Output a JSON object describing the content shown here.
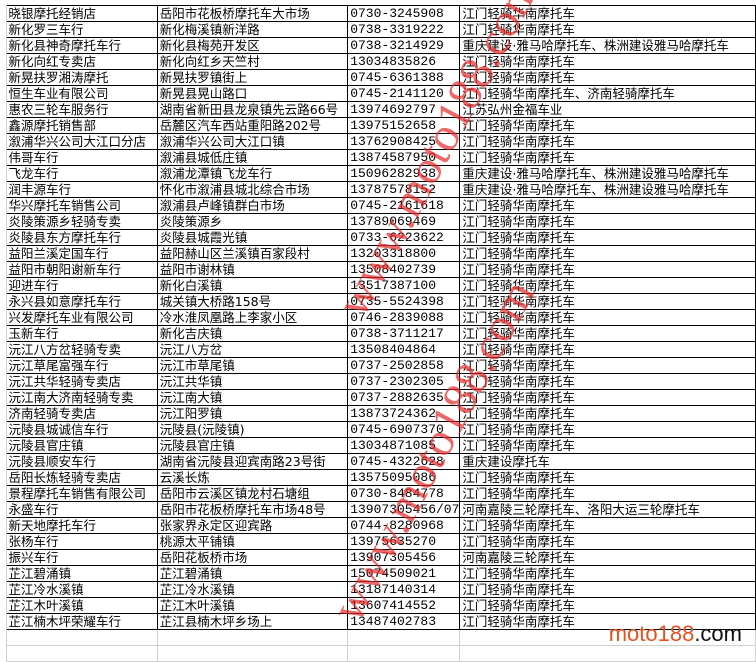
{
  "rows": [
    [
      "晓银摩托经销店",
      "岳阳市花板桥摩托车大市场",
      "0730-3245908",
      "江门轻骑华南摩托车"
    ],
    [
      "新化罗三车行",
      "新化梅溪镇新洋路",
      "0738-3319222",
      "江门轻骑华南摩托车"
    ],
    [
      "新化县神奇摩托车行",
      "新化县梅苑开发区",
      "0738-3214929",
      "重庆建设·雅马哈摩托车、株洲建设雅马哈摩托车"
    ],
    [
      "新化向红专卖店",
      "新化向红乡天竺村",
      "13034835826",
      "江门轻骑华南摩托车"
    ],
    [
      "新晃扶罗湘涛摩托",
      "新晃扶罗镇街上",
      "0745-6361388",
      "江门轻骑华南摩托车"
    ],
    [
      "恒生车业有限公司",
      "新晃县晃山路口",
      "0745-2141120",
      "江门轻骑华南摩托车、济南轻骑摩托车"
    ],
    [
      "惠农三轮车服务行",
      "湖南省新田县龙泉镇先云路66号",
      "13974692797",
      "江苏弘州金福车业"
    ],
    [
      "鑫源摩托销售部",
      "岳麓区汽车西站重阳路202号",
      "13975152658",
      "江门轻骑华南摩托车"
    ],
    [
      "溆浦华兴公司大江口分店",
      "溆浦华兴公司大江口镇",
      "13762908425",
      "江门轻骑华南摩托车"
    ],
    [
      "伟哥车行",
      "溆浦县城低庄镇",
      "13874587950",
      "江门轻骑华南摩托车"
    ],
    [
      "飞龙车行",
      "溆浦龙潭镇飞龙车行",
      "15096282938",
      "重庆建设·雅马哈摩托车、株洲建设雅马哈摩托车"
    ],
    [
      "润丰源车行",
      "怀化市溆浦县城北综合市场",
      "13787578152",
      "重庆建设·雅马哈摩托车、株洲建设雅马哈摩托车"
    ],
    [
      "华兴摩托车销售公司",
      "溆浦县卢峰镇群白市场",
      "0745-2161618",
      "江门轻骑华南摩托车"
    ],
    [
      "炎陵策源乡轻骑专卖",
      "炎陵策源乡",
      "13789069469",
      "江门轻骑华南摩托车"
    ],
    [
      "炎陵县东方摩托车行",
      "炎陵县城霞光镇",
      "0733-6223622",
      "江门轻骑华南摩托车"
    ],
    [
      "益阳兰溪定国车行",
      "益阳赫山区兰溪镇百家段村",
      "13203318800",
      "江门轻骑华南摩托车"
    ],
    [
      "益阳市朝阳谢新车行",
      "益阳市谢林镇",
      "13508402739",
      "江门轻骑华南摩托车"
    ],
    [
      "迎进车行",
      "新化白溪镇",
      "13517387100",
      "江门轻骑华南摩托车"
    ],
    [
      "永兴县如意摩托车行",
      "城关镇大桥路158号",
      "0735-5524398",
      "江门轻骑华南摩托车"
    ],
    [
      "兴发摩托车业有限公司",
      "冷水淮凤凰路上李家小区",
      "0746-2839088",
      "江门轻骑华南摩托车"
    ],
    [
      "玉新车行",
      "新化吉庆镇",
      "0738-3711217",
      "江门轻骑华南摩托车"
    ],
    [
      "沅江八方岔轻骑专卖",
      "沅江八方岔",
      "13508404864",
      "江门轻骑华南摩托车"
    ],
    [
      "沅江草尾富强车行",
      "沅江市草尾镇",
      "0737-2502858",
      "江门轻骑华南摩托车"
    ],
    [
      "沅江共华轻骑专卖店",
      "沅江共华镇",
      "0737-2302305",
      "江门轻骑华南摩托车"
    ],
    [
      "沅江南大济南轻骑专卖",
      "沅江南大镇",
      "0737-2882635",
      "江门轻骑华南摩托车"
    ],
    [
      "济南轻骑专卖店",
      "沅江阳罗镇",
      "13873724362",
      "江门轻骑华南摩托车"
    ],
    [
      "沅陵县城诚信车行",
      "沅陵县(沅陵镇)",
      "0745-6907370",
      "江门轻骑华南摩托车"
    ],
    [
      "沅陵县官庄镇",
      "沅陵县官庄镇",
      "13034871085",
      "江门轻骑华南摩托车"
    ],
    [
      "沅陵县顺安车行",
      "湖南省沅陵县迎宾南路23号街",
      "0745-4322628",
      "重庆建设摩托车"
    ],
    [
      "岳阳长炼轻骑专卖店",
      "云溪长炼",
      "13575095086",
      "江门轻骑华南摩托车"
    ],
    [
      "景程摩托车销售有限公司",
      "岳阳市云溪区镇龙村石塘组",
      "0730-8484778",
      "江门轻骑华南摩托车"
    ],
    [
      "永盛车行",
      "岳阳市花板桥摩托车市场48号",
      "13907305456/07",
      "河南嘉陵三轮摩托车、洛阳大运三轮摩托车"
    ],
    [
      "新天地摩托车行",
      "张家界永定区迎宾路",
      "0744-8280968",
      "江门轻骑华南摩托车"
    ],
    [
      "张杨车行",
      "桃源太平铺镇",
      "13975635270",
      "江门轻骑华南摩托车"
    ],
    [
      "振兴车行",
      "岳阳花板桥市场",
      "13907305456",
      "河南嘉陵三轮摩托车"
    ],
    [
      "芷江碧涌镇",
      "芷江碧涌镇",
      "15074509021",
      "江门轻骑华南摩托车"
    ],
    [
      "芷江冷水溪镇",
      "芷江冷水溪镇",
      "13187140314",
      "江门轻骑华南摩托车"
    ],
    [
      "芷江木叶溪镇",
      "芷江木叶溪镇",
      "13607414552",
      "江门轻骑华南摩托车"
    ],
    [
      "芷江楠木坪荣耀车行",
      "芷江县楠木坪乡场上",
      "13487402783",
      "江门轻骑华南摩托车"
    ]
  ],
  "watermark": "www.moto188.com",
  "logo": {
    "part1": "moto188",
    "part2": ".com"
  },
  "colors": {
    "watermark": "#e62828",
    "logo_accent": "#e8501e"
  }
}
